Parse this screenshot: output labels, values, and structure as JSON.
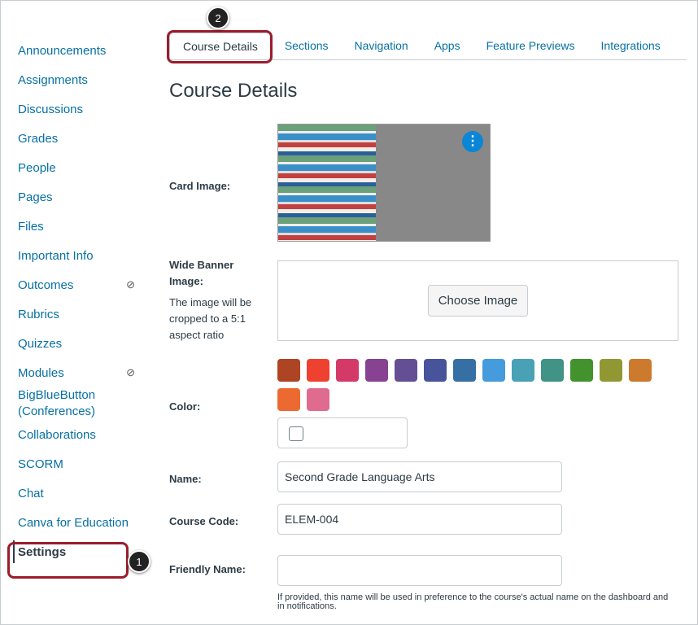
{
  "sidebar": {
    "items": [
      {
        "label": "Announcements"
      },
      {
        "label": "Assignments"
      },
      {
        "label": "Discussions"
      },
      {
        "label": "Grades"
      },
      {
        "label": "People"
      },
      {
        "label": "Pages"
      },
      {
        "label": "Files"
      },
      {
        "label": "Important Info"
      },
      {
        "label": "Outcomes",
        "hidden": true
      },
      {
        "label": "Rubrics"
      },
      {
        "label": "Quizzes"
      },
      {
        "label": "Modules",
        "hidden": true
      },
      {
        "label": "BigBlueButton (Conferences)"
      },
      {
        "label": "Collaborations"
      },
      {
        "label": "SCORM"
      },
      {
        "label": "Chat"
      },
      {
        "label": "Canva for Education"
      },
      {
        "label": "Settings",
        "active": true
      }
    ]
  },
  "callouts": {
    "one": "1",
    "two": "2"
  },
  "tabs": [
    {
      "label": "Course Details"
    },
    {
      "label": "Sections"
    },
    {
      "label": "Navigation"
    },
    {
      "label": "Apps"
    },
    {
      "label": "Feature Previews"
    },
    {
      "label": "Integrations"
    }
  ],
  "page_title": "Course Details",
  "card_image": {
    "label": "Card Image:",
    "menu_icon": "kebab-icon"
  },
  "banner": {
    "label": "Wide Banner Image:",
    "help": "The image will be cropped to a 5:1 aspect ratio",
    "button": "Choose Image"
  },
  "color": {
    "label": "Color:",
    "swatches": [
      "#ad4424",
      "#ee4130",
      "#d43a67",
      "#874391",
      "#644f95",
      "#47549b",
      "#356fa3",
      "#459bdb",
      "#49a1b6",
      "#419386",
      "#43922e",
      "#919833",
      "#cc7a2e",
      "#ec6a31",
      "#df6b8f"
    ]
  },
  "name": {
    "label": "Name:",
    "value": "Second Grade Language Arts"
  },
  "course_code": {
    "label": "Course Code:",
    "value": "ELEM-004"
  },
  "friendly_name": {
    "label": "Friendly Name:",
    "value": "",
    "note": "If provided, this name will be used in preference to the course's actual name on the dashboard and in notifications."
  }
}
